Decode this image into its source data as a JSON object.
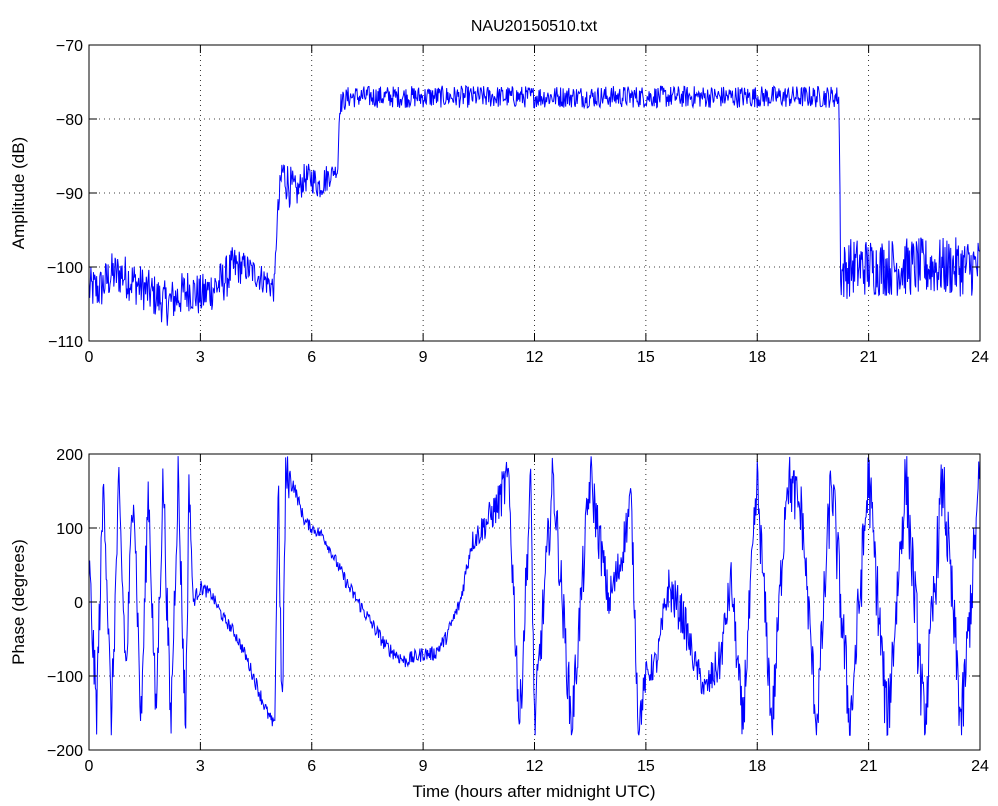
{
  "chart_data": [
    {
      "type": "line",
      "title": "NAU20150510.txt",
      "xlabel": "",
      "ylabel": "Amplitude (dB)",
      "xlim": [
        0,
        24
      ],
      "ylim": [
        -110,
        -70
      ],
      "xticks": [
        "0",
        "3",
        "6",
        "9",
        "12",
        "15",
        "18",
        "21",
        "24"
      ],
      "yticks": [
        "−110",
        "−100",
        "−90",
        "−80",
        "−70"
      ],
      "grid": true,
      "line_color": "#0000ff",
      "series": [
        {
          "x": [
            0,
            0.3,
            0.6,
            0.9,
            1.2,
            1.5,
            1.8,
            2.1,
            2.4,
            2.7,
            3.0,
            3.3,
            3.6,
            3.9,
            4.2,
            4.5,
            4.8,
            5.0,
            5.05,
            5.2,
            5.4,
            5.6,
            5.8,
            6.0,
            6.2,
            6.4,
            6.6,
            6.7,
            6.75,
            7.0,
            8.0,
            9.0,
            10.0,
            11.0,
            12.0,
            13.0,
            14.0,
            15.0,
            16.0,
            17.0,
            18.0,
            19.0,
            20.0,
            20.2,
            20.25,
            20.5,
            21.0,
            21.5,
            22.0,
            22.5,
            23.0,
            23.5,
            24.0
          ],
          "y": [
            -103,
            -103,
            -101,
            -101,
            -102,
            -103,
            -104,
            -105,
            -104,
            -103,
            -104,
            -103,
            -102,
            -100,
            -100,
            -101,
            -102,
            -103,
            -95,
            -87,
            -89,
            -90,
            -88,
            -88,
            -89,
            -88,
            -87,
            -87,
            -78,
            -77,
            -77,
            -77,
            -77,
            -77,
            -77,
            -77,
            -77,
            -77,
            -77,
            -77,
            -77,
            -77,
            -77,
            -77,
            -101,
            -100,
            -100,
            -100,
            -100,
            -100,
            -100,
            -100,
            -100
          ],
          "noise": [
            3,
            3,
            3,
            3,
            3,
            3,
            3,
            3,
            3,
            3,
            3,
            3,
            3,
            3,
            2,
            2,
            2,
            2,
            2,
            3,
            3,
            2,
            2,
            2,
            2,
            2,
            1,
            1,
            1.5,
            1.5,
            1.5,
            1.5,
            1.5,
            1.5,
            1.5,
            1.5,
            1.5,
            1.5,
            1.5,
            1.5,
            1.5,
            1.5,
            1.5,
            1.5,
            4,
            4,
            4,
            4,
            4,
            4,
            4,
            4,
            4
          ]
        }
      ]
    },
    {
      "type": "line",
      "title": "",
      "xlabel": "Time (hours after midnight UTC)",
      "ylabel": "Phase (degrees)",
      "xlim": [
        0,
        24
      ],
      "ylim": [
        -200,
        200
      ],
      "xticks": [
        "0",
        "3",
        "6",
        "9",
        "12",
        "15",
        "18",
        "21",
        "24"
      ],
      "yticks": [
        "−200",
        "−100",
        "0",
        "100",
        "200"
      ],
      "grid": true,
      "line_color": "#0000ff",
      "series": [
        {
          "x": [
            0,
            0.2,
            0.4,
            0.6,
            0.8,
            1.0,
            1.2,
            1.4,
            1.6,
            1.8,
            2.0,
            2.2,
            2.4,
            2.6,
            2.7,
            2.8,
            3.0,
            3.3,
            3.6,
            3.9,
            4.2,
            4.5,
            4.8,
            5.0,
            5.1,
            5.2,
            5.3,
            5.5,
            5.8,
            6.0,
            6.3,
            6.6,
            7.0,
            7.5,
            8.0,
            8.5,
            9.0,
            9.3,
            9.6,
            10.0,
            10.3,
            10.6,
            11.0,
            11.3,
            11.6,
            11.9,
            12.0,
            12.5,
            13.0,
            13.5,
            14.0,
            14.3,
            14.6,
            14.8,
            15.0,
            15.3,
            15.6,
            16.0,
            16.3,
            16.6,
            17.0,
            17.3,
            17.6,
            18.0,
            18.4,
            18.8,
            19.2,
            19.6,
            20.0,
            20.5,
            21.0,
            21.5,
            22.0,
            22.5,
            23.0,
            23.5,
            24.0
          ],
          "y": [
            50,
            -150,
            170,
            -170,
            150,
            -100,
            170,
            -170,
            160,
            -160,
            170,
            -170,
            170,
            -170,
            170,
            0,
            20,
            10,
            -20,
            -40,
            -70,
            -110,
            -150,
            -170,
            170,
            -170,
            170,
            160,
            110,
            100,
            90,
            60,
            20,
            -20,
            -60,
            -80,
            -70,
            -70,
            -50,
            0,
            80,
            100,
            130,
            170,
            -170,
            170,
            -170,
            170,
            -170,
            170,
            0,
            50,
            140,
            -170,
            -100,
            -80,
            20,
            -20,
            -80,
            -120,
            -80,
            30,
            -170,
            160,
            -170,
            170,
            120,
            -170,
            170,
            -170,
            170,
            -170,
            170,
            -170,
            170,
            -170,
            170
          ],
          "noise": [
            40,
            40,
            40,
            40,
            40,
            40,
            40,
            40,
            40,
            40,
            40,
            40,
            40,
            40,
            40,
            10,
            10,
            8,
            8,
            8,
            8,
            10,
            10,
            10,
            40,
            40,
            40,
            10,
            8,
            8,
            8,
            8,
            10,
            10,
            10,
            10,
            10,
            10,
            10,
            10,
            15,
            20,
            25,
            40,
            40,
            40,
            40,
            40,
            40,
            40,
            30,
            30,
            30,
            30,
            20,
            20,
            30,
            30,
            20,
            20,
            30,
            30,
            40,
            40,
            40,
            40,
            40,
            40,
            50,
            50,
            50,
            50,
            50,
            50,
            50,
            50,
            50
          ]
        }
      ]
    }
  ]
}
